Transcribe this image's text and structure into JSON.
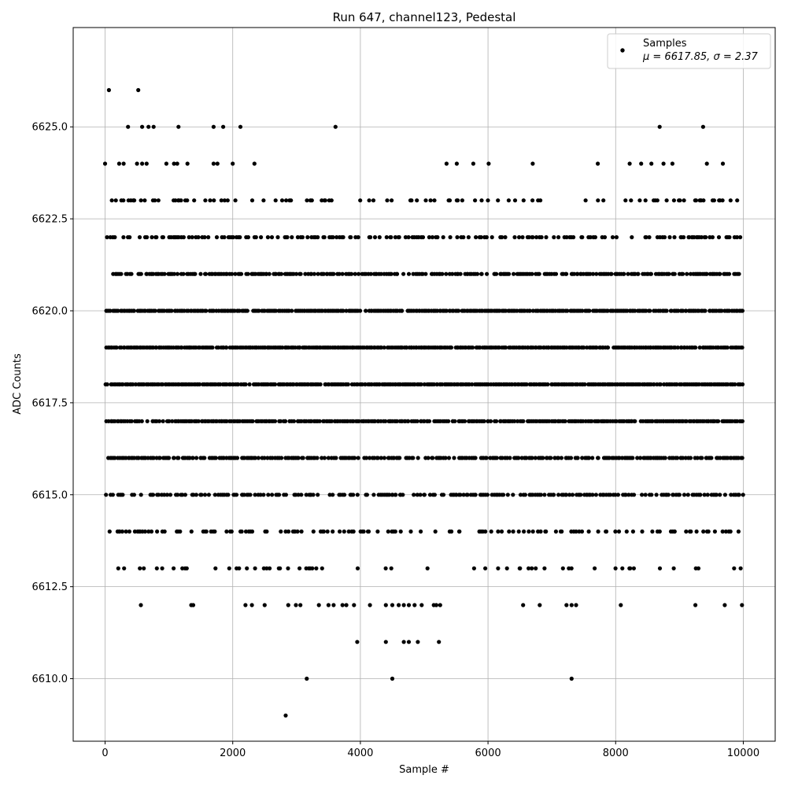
{
  "chart_data": {
    "type": "scatter",
    "title": "Run 647, channel123, Pedestal",
    "xlabel": "Sample #",
    "ylabel": "ADC Counts",
    "xlim": [
      -500,
      10500
    ],
    "ylim": [
      6608.3,
      6627.7
    ],
    "xticks": [
      0,
      2000,
      4000,
      6000,
      8000,
      10000
    ],
    "xtick_labels": [
      "0",
      "2000",
      "4000",
      "6000",
      "8000",
      "10000"
    ],
    "yticks": [
      6610.0,
      6612.5,
      6615.0,
      6617.5,
      6620.0,
      6622.5,
      6625.0
    ],
    "ytick_labels": [
      "6610.0",
      "6612.5",
      "6615.0",
      "6617.5",
      "6620.0",
      "6622.5",
      "6625.0"
    ],
    "grid": true,
    "legend": {
      "placement": "top-right",
      "entries": [
        {
          "label": "Samples",
          "stats_text": "μ = 6617.85, σ = 2.37",
          "marker_color": "#000000"
        }
      ]
    },
    "series": [
      {
        "name": "Samples",
        "color": "#000000",
        "sample_range": [
          0,
          9999
        ],
        "mean": 6617.85,
        "sigma": 2.37,
        "dense_levels": [
          6613,
          6614,
          6615,
          6616,
          6617,
          6618,
          6619,
          6620,
          6621,
          6622,
          6623
        ],
        "sparse_points": [
          {
            "x": 60,
            "y": 6626
          },
          {
            "x": 520,
            "y": 6626
          },
          {
            "x": 360,
            "y": 6625
          },
          {
            "x": 580,
            "y": 6625
          },
          {
            "x": 680,
            "y": 6625
          },
          {
            "x": 760,
            "y": 6625
          },
          {
            "x": 1150,
            "y": 6625
          },
          {
            "x": 1700,
            "y": 6625
          },
          {
            "x": 1850,
            "y": 6625
          },
          {
            "x": 2120,
            "y": 6625
          },
          {
            "x": 3610,
            "y": 6625
          },
          {
            "x": 8690,
            "y": 6625
          },
          {
            "x": 9370,
            "y": 6625
          },
          {
            "x": 0,
            "y": 6624
          },
          {
            "x": 220,
            "y": 6624
          },
          {
            "x": 290,
            "y": 6624
          },
          {
            "x": 500,
            "y": 6624
          },
          {
            "x": 580,
            "y": 6624
          },
          {
            "x": 650,
            "y": 6624
          },
          {
            "x": 960,
            "y": 6624
          },
          {
            "x": 1080,
            "y": 6624
          },
          {
            "x": 1130,
            "y": 6624
          },
          {
            "x": 1290,
            "y": 6624
          },
          {
            "x": 1700,
            "y": 6624
          },
          {
            "x": 1760,
            "y": 6624
          },
          {
            "x": 2000,
            "y": 6624
          },
          {
            "x": 2340,
            "y": 6624
          },
          {
            "x": 5350,
            "y": 6624
          },
          {
            "x": 5510,
            "y": 6624
          },
          {
            "x": 5770,
            "y": 6624
          },
          {
            "x": 6010,
            "y": 6624
          },
          {
            "x": 6700,
            "y": 6624
          },
          {
            "x": 7720,
            "y": 6624
          },
          {
            "x": 8220,
            "y": 6624
          },
          {
            "x": 8400,
            "y": 6624
          },
          {
            "x": 8560,
            "y": 6624
          },
          {
            "x": 8750,
            "y": 6624
          },
          {
            "x": 8890,
            "y": 6624
          },
          {
            "x": 9430,
            "y": 6624
          },
          {
            "x": 9680,
            "y": 6624
          },
          {
            "x": 560,
            "y": 6612
          },
          {
            "x": 1350,
            "y": 6612
          },
          {
            "x": 1380,
            "y": 6612
          },
          {
            "x": 2200,
            "y": 6612
          },
          {
            "x": 2300,
            "y": 6612
          },
          {
            "x": 2500,
            "y": 6612
          },
          {
            "x": 2870,
            "y": 6612
          },
          {
            "x": 2990,
            "y": 6612
          },
          {
            "x": 3060,
            "y": 6612
          },
          {
            "x": 3350,
            "y": 6612
          },
          {
            "x": 3500,
            "y": 6612
          },
          {
            "x": 3580,
            "y": 6612
          },
          {
            "x": 3720,
            "y": 6612
          },
          {
            "x": 3780,
            "y": 6612
          },
          {
            "x": 3900,
            "y": 6612
          },
          {
            "x": 4150,
            "y": 6612
          },
          {
            "x": 4400,
            "y": 6612
          },
          {
            "x": 4500,
            "y": 6612
          },
          {
            "x": 4600,
            "y": 6612
          },
          {
            "x": 4680,
            "y": 6612
          },
          {
            "x": 4760,
            "y": 6612
          },
          {
            "x": 4850,
            "y": 6612
          },
          {
            "x": 4960,
            "y": 6612
          },
          {
            "x": 5150,
            "y": 6612
          },
          {
            "x": 5190,
            "y": 6612
          },
          {
            "x": 5250,
            "y": 6612
          },
          {
            "x": 6550,
            "y": 6612
          },
          {
            "x": 6810,
            "y": 6612
          },
          {
            "x": 7230,
            "y": 6612
          },
          {
            "x": 7310,
            "y": 6612
          },
          {
            "x": 7380,
            "y": 6612
          },
          {
            "x": 8080,
            "y": 6612
          },
          {
            "x": 9250,
            "y": 6612
          },
          {
            "x": 9710,
            "y": 6612
          },
          {
            "x": 9980,
            "y": 6612
          },
          {
            "x": 3950,
            "y": 6611
          },
          {
            "x": 4400,
            "y": 6611
          },
          {
            "x": 4680,
            "y": 6611
          },
          {
            "x": 4760,
            "y": 6611
          },
          {
            "x": 4900,
            "y": 6611
          },
          {
            "x": 5230,
            "y": 6611
          },
          {
            "x": 3160,
            "y": 6610
          },
          {
            "x": 4500,
            "y": 6610
          },
          {
            "x": 7310,
            "y": 6610
          },
          {
            "x": 2830,
            "y": 6609
          }
        ]
      }
    ]
  }
}
